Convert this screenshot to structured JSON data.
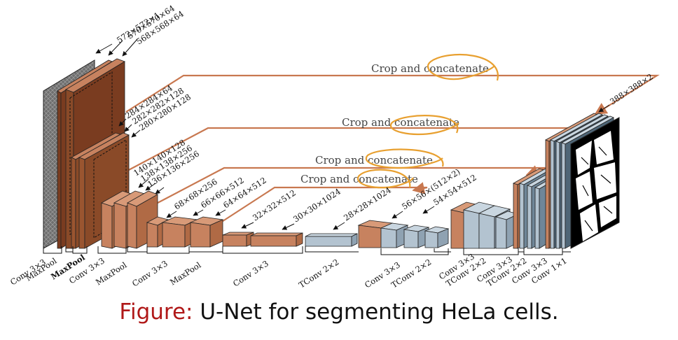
{
  "caption": {
    "prefix": "Figure:",
    "text": "U-Net for segmenting HeLa cells."
  },
  "colors": {
    "copper": "#c7825f",
    "copper_dark": "#7a3c20",
    "blue": "#b3c3d0",
    "blue_dark": "#4f6677",
    "highlight": "#e8a030",
    "skip_line": "#c87850"
  },
  "diagram": {
    "skip_labels": [
      "Crop and concatenate",
      "Crop and concatenate",
      "Crop and concatenate",
      "Crop and concatenate"
    ],
    "dims": {
      "d1": "572×572×1",
      "d2": "570×570×64",
      "d3": "568×568×64",
      "d4": "284×284×64",
      "d5": "282×282×128",
      "d6": "280×280×128",
      "d7": "140×140×128",
      "d8": "138×138×256",
      "d9": "136×136×256",
      "d10": "68×68×256",
      "d11": "66×66×512",
      "d12": "64×64×512",
      "d13": "32×32×512",
      "d14": "30×30×1024",
      "d15": "28×28×1024",
      "d16": "56×56×(512×2)",
      "d17": "54×54×512",
      "d18": "388×388×2"
    },
    "ops": {
      "o1": "Conv 3×3",
      "o2": "MaxPool",
      "o3": "MaxPool",
      "o4": "Conv 3×3",
      "o5": "MaxPool",
      "o6": "Conv 3×3",
      "o7": "MaxPool",
      "o8": "Conv 3×3",
      "o9": "TConv 2×2",
      "o10": "Conv 3×3",
      "o11": "TConv 2×2",
      "o12": "Conv 3×3",
      "o13": "TConv 2×2",
      "o14": "Conv 3×3",
      "o15": "TConv 2×2",
      "o16": "Conv 3×3",
      "o17": "Conv 1×1"
    }
  }
}
